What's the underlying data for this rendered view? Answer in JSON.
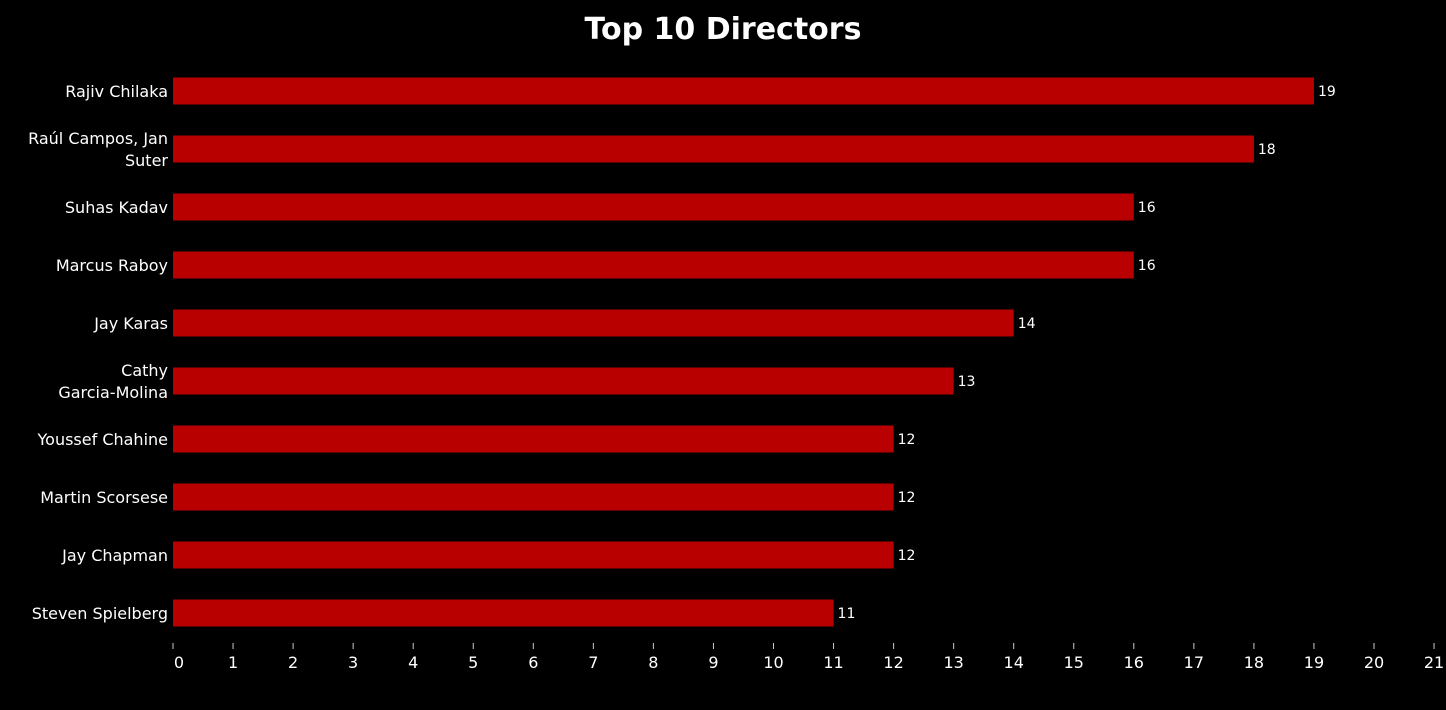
{
  "chart_data": {
    "type": "bar",
    "orientation": "horizontal",
    "title": "Top 10 Directors",
    "xlabel": "",
    "ylabel": "",
    "categories": [
      "Rajiv Chilaka",
      "Raúl Campos, Jan Suter",
      "Suhas Kadav",
      "Marcus Raboy",
      "Jay Karas",
      "Cathy Garcia-Molina",
      "Youssef Chahine",
      "Martin Scorsese",
      "Jay Chapman",
      "Steven Spielberg"
    ],
    "category_label_lines": [
      [
        "Rajiv Chilaka"
      ],
      [
        "Raúl Campos, Jan",
        "Suter"
      ],
      [
        "Suhas Kadav"
      ],
      [
        "Marcus Raboy"
      ],
      [
        "Jay Karas"
      ],
      [
        "Cathy",
        "Garcia-Molina"
      ],
      [
        "Youssef Chahine"
      ],
      [
        "Martin Scorsese"
      ],
      [
        "Jay Chapman"
      ],
      [
        "Steven Spielberg"
      ]
    ],
    "values": [
      19,
      18,
      16,
      16,
      14,
      13,
      12,
      12,
      12,
      11
    ],
    "xlim": [
      0,
      21
    ],
    "x_ticks": [
      0,
      1,
      2,
      3,
      4,
      5,
      6,
      7,
      8,
      9,
      10,
      11,
      12,
      13,
      14,
      15,
      16,
      17,
      18,
      19,
      20,
      21
    ],
    "grid": false,
    "data_labels": true,
    "bar_color": "#b80000",
    "background_color": "#000000",
    "text_color": "#ffffff"
  }
}
